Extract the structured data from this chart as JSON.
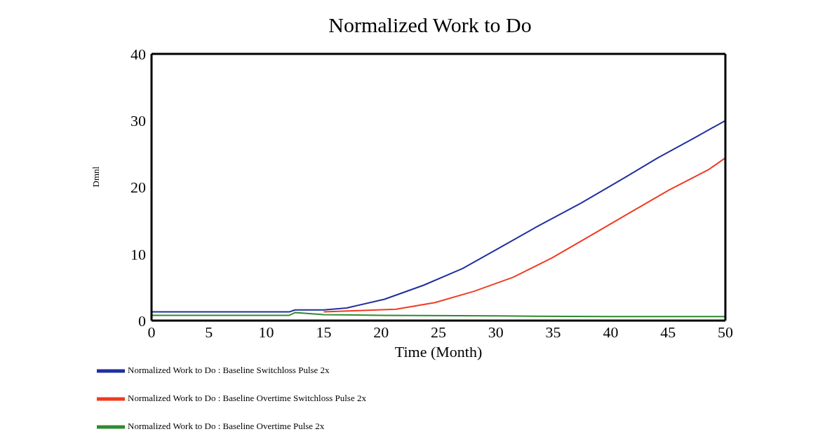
{
  "chart_data": {
    "type": "line",
    "title": "Normalized Work to Do",
    "xlabel": "Time (Month)",
    "ylabel": "Dmnl",
    "xlim": [
      0,
      50
    ],
    "xticks": [
      0,
      5,
      10,
      15,
      20,
      25,
      30,
      35,
      40,
      45,
      50
    ],
    "ylim": [
      0,
      40
    ],
    "yticks": [
      0,
      10,
      20,
      30,
      40
    ],
    "grid": false,
    "legend": "bottom",
    "line_style": "solid",
    "series": [
      {
        "name": "Normalized Work to Do : Baseline Switchloss Pulse 2x",
        "color": "#1f2f9f",
        "x": [
          0,
          5,
          10,
          12,
          12.5,
          15,
          17,
          20.3,
          23.7,
          27.1,
          30.5,
          33.8,
          37.4,
          40.8,
          44.1,
          47.4,
          50
        ],
        "values": [
          1.3,
          1.3,
          1.3,
          1.3,
          1.6,
          1.6,
          1.9,
          3.2,
          5.3,
          7.8,
          11.1,
          14.3,
          17.6,
          21.0,
          24.4,
          27.5,
          30.0
        ]
      },
      {
        "name": "Normalized Work to Do : Baseline Overtime Switchloss Pulse 2x",
        "color": "#f03a20",
        "x": [
          15,
          18,
          21.3,
          24.7,
          28.1,
          31.5,
          34.9,
          38.3,
          41.7,
          45.1,
          48.5,
          50
        ],
        "values": [
          1.3,
          1.5,
          1.7,
          2.7,
          4.4,
          6.5,
          9.4,
          12.8,
          16.2,
          19.6,
          22.6,
          24.4
        ]
      },
      {
        "name": "Normalized Work to Do : Baseline Overtime Pulse 2x",
        "color": "#2e8b2e",
        "x": [
          0,
          5,
          10,
          12,
          12.5,
          15,
          20,
          30,
          40,
          50
        ],
        "values": [
          0.8,
          0.8,
          0.8,
          0.8,
          1.2,
          0.9,
          0.8,
          0.7,
          0.6,
          0.6
        ]
      }
    ]
  }
}
